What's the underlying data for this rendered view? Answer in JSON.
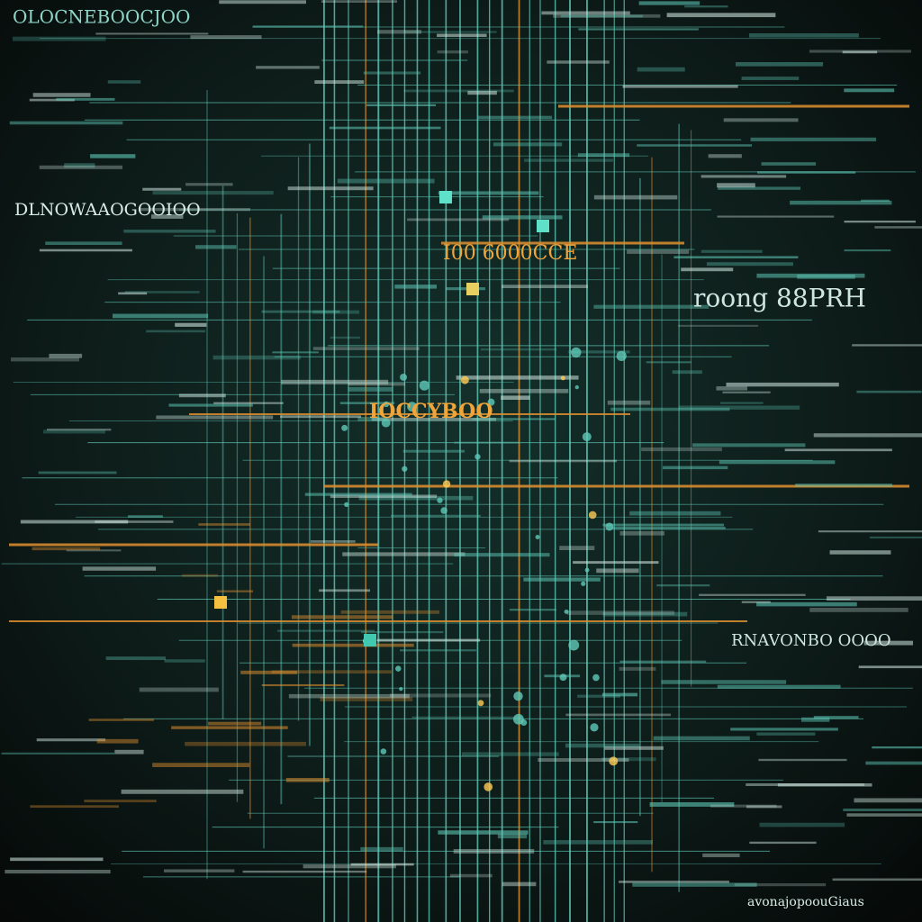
{
  "labels": {
    "top_left": "OLOCNEBOOCJOO",
    "left_header": "DLNOWAAOGOOIOO",
    "center_band": "I00 6000CCE",
    "right_header": "roong 88PRH",
    "center_tag": "IOCCYBOO",
    "right_caption": "RNAVONBO OOOO",
    "bottom_right": "avonajopoouGiaus"
  }
}
